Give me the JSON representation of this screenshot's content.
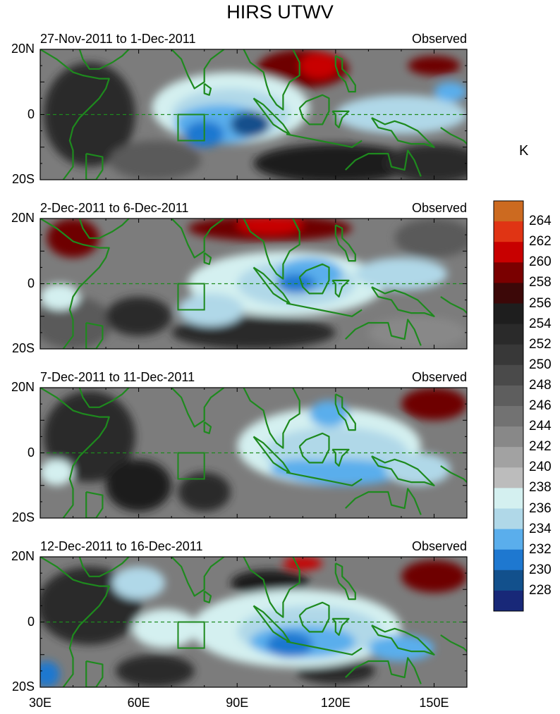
{
  "title": "HIRS UTWV",
  "units": "K",
  "colors": {
    "coast": "#1e8a1e",
    "box": "#1e8a1e"
  },
  "colorbar": {
    "levels": [
      "264",
      "262",
      "260",
      "258",
      "256",
      "254",
      "252",
      "250",
      "248",
      "246",
      "244",
      "242",
      "240",
      "238",
      "236",
      "234",
      "232",
      "230",
      "228"
    ],
    "colors": [
      "#cc6a20",
      "#e03414",
      "#c80000",
      "#7a0000",
      "#3c0808",
      "#1e1e1e",
      "#2a2a2a",
      "#383838",
      "#4a4a4a",
      "#5e5e5e",
      "#727272",
      "#888888",
      "#a2a2a2",
      "#bcbcbc",
      "#d4f0f0",
      "#b0d8e8",
      "#5aaeec",
      "#1e78d0",
      "#12508c",
      "#182878"
    ]
  },
  "axes": {
    "lat_ticks": [
      "20N",
      "0",
      "20S"
    ],
    "lon_ticks": [
      "30E",
      "60E",
      "90E",
      "120E",
      "150E"
    ]
  },
  "panels": [
    {
      "left_label": "27-Nov-2011 to 1-Dec-2011",
      "right_label": "Observed"
    },
    {
      "left_label": "2-Dec-2011 to 6-Dec-2011",
      "right_label": "Observed"
    },
    {
      "left_label": "7-Dec-2011 to 11-Dec-2011",
      "right_label": "Observed"
    },
    {
      "left_label": "12-Dec-2011 to 16-Dec-2011",
      "right_label": "Observed"
    }
  ]
}
